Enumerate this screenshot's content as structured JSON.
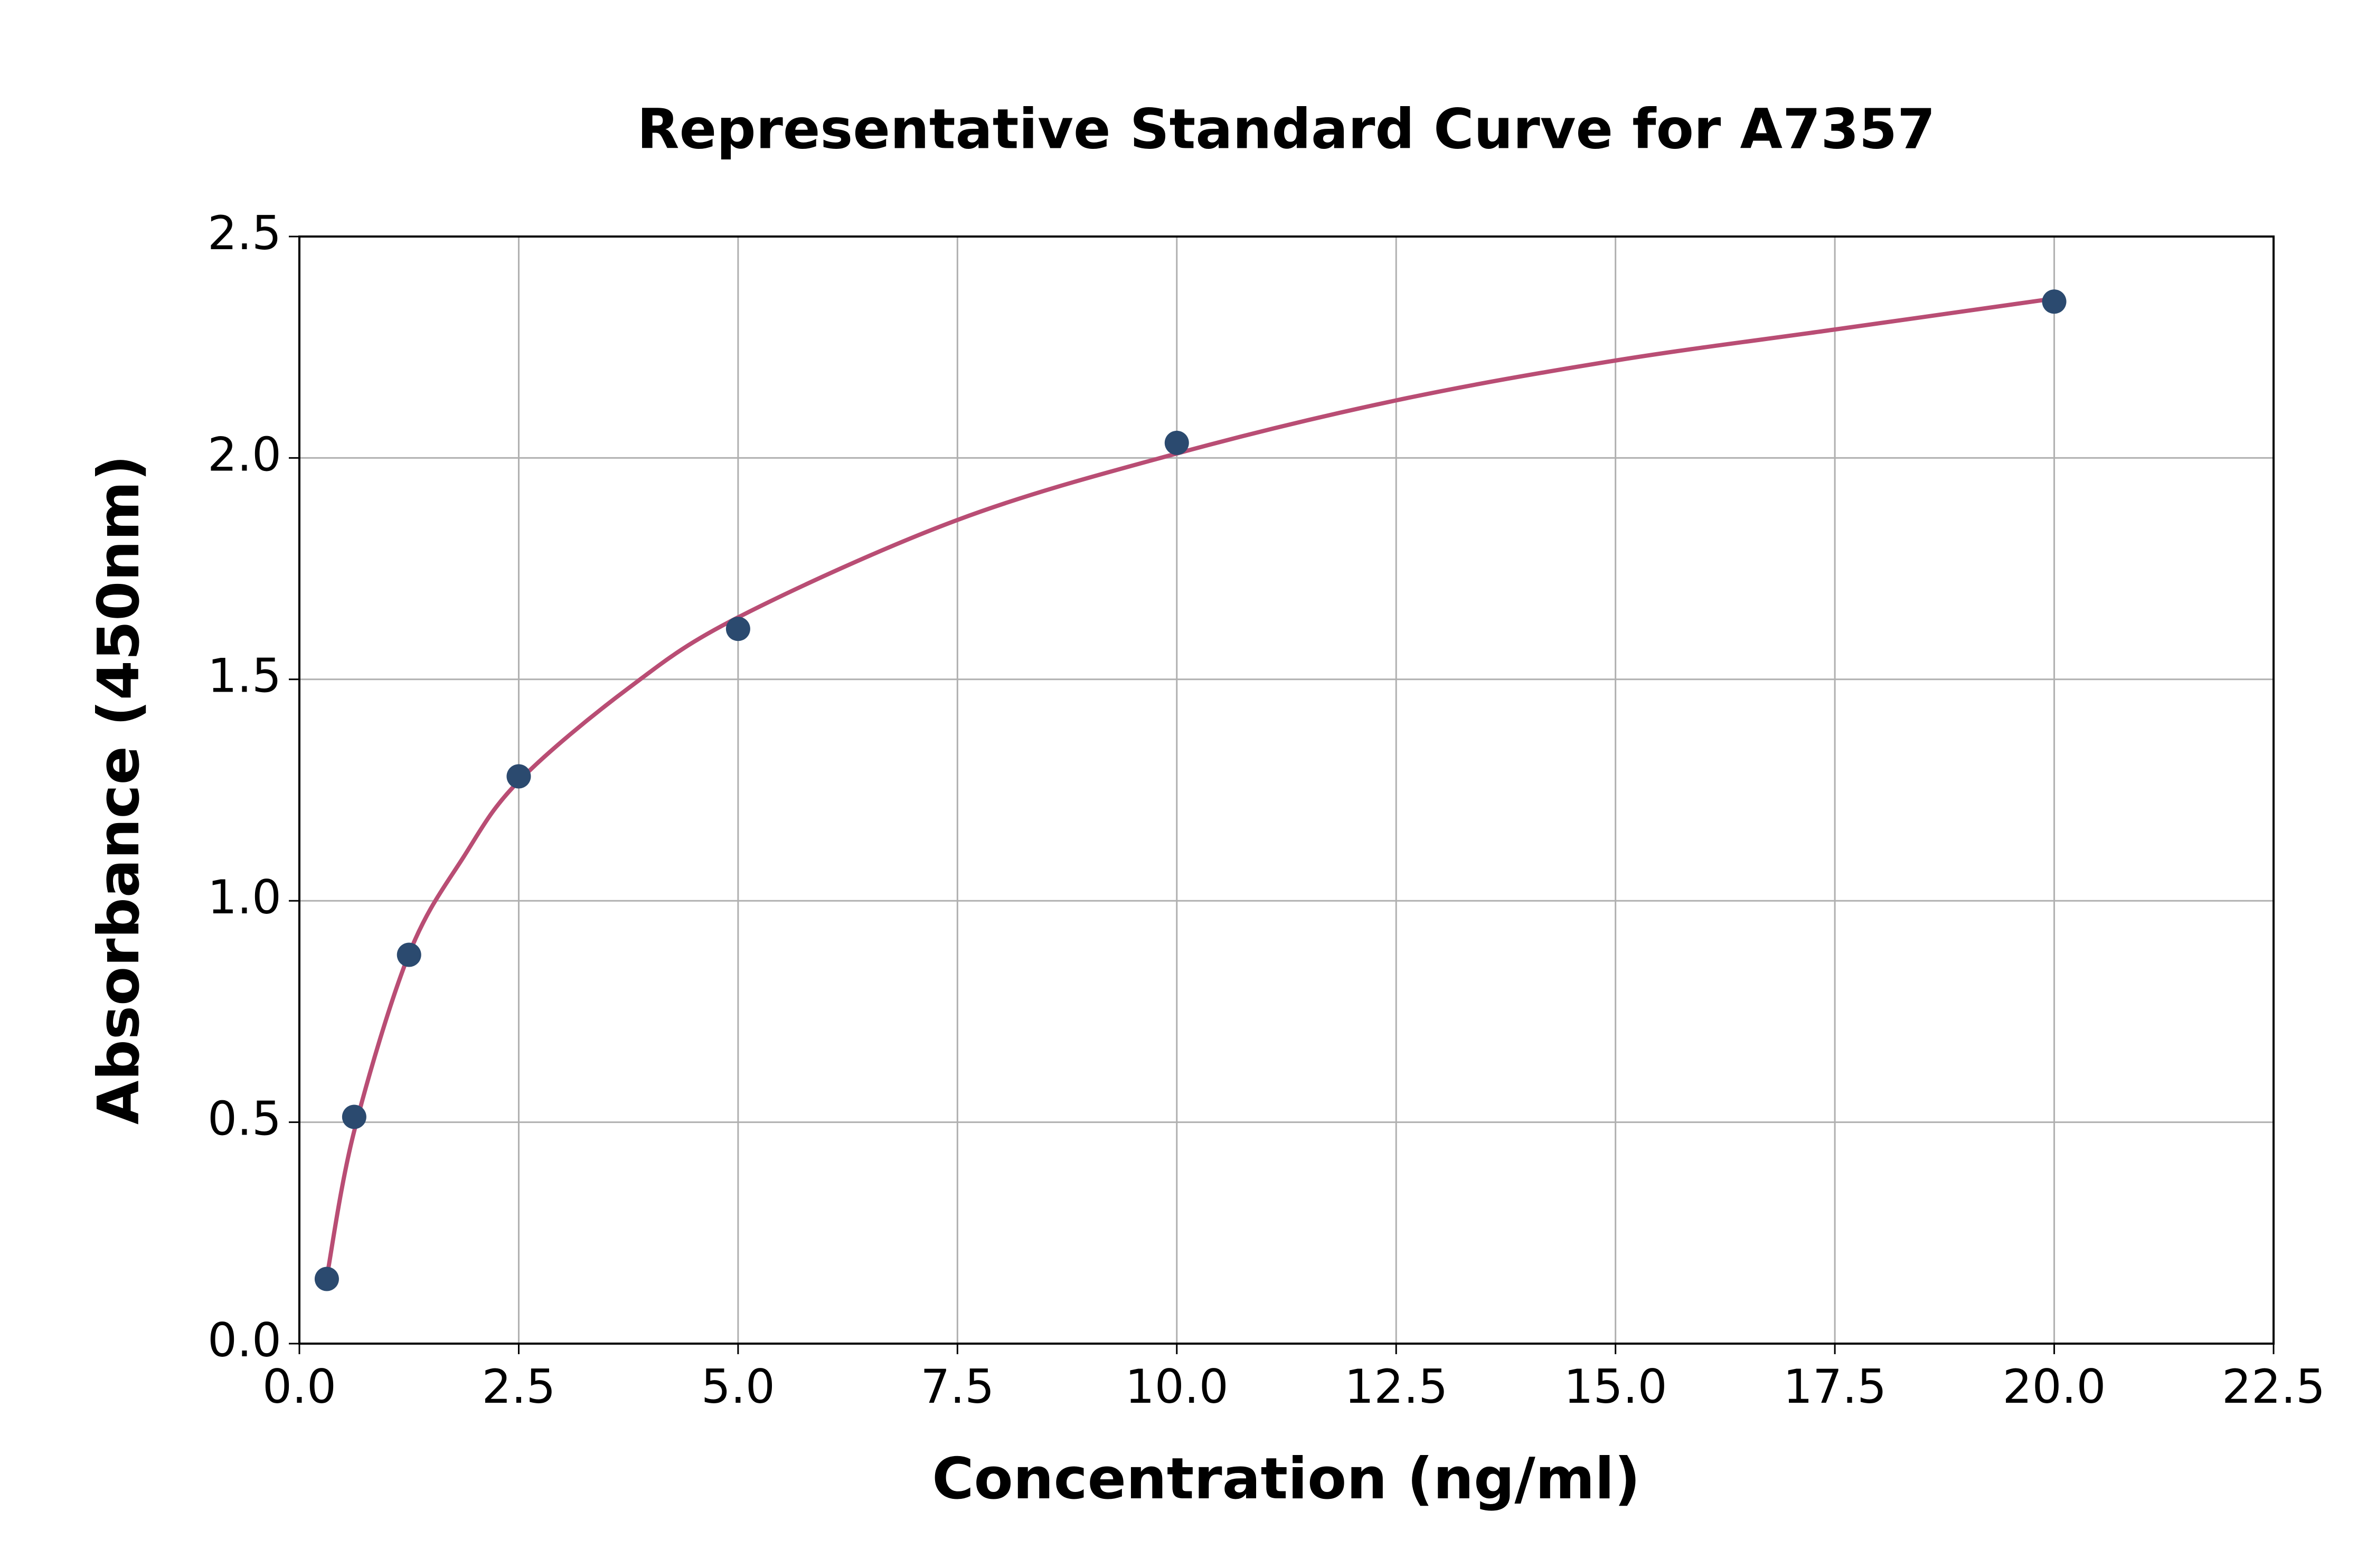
{
  "chart_data": {
    "type": "scatter",
    "title": "Representative Standard Curve for A7357",
    "x_label": "Concentration (ng/ml)",
    "y_label": "Absorbance (450nm)",
    "series": [
      {
        "type": "line",
        "color": "#b94d74",
        "x": [
          0.3125,
          0.625,
          1.25,
          1.875,
          2.5,
          3.75,
          5,
          7.5,
          10,
          12.5,
          15,
          17.5,
          20
        ],
        "values": [
          0.15,
          0.48,
          0.88,
          1.1,
          1.27,
          1.48,
          1.64,
          1.86,
          2.01,
          2.13,
          2.22,
          2.29,
          2.36
        ]
      },
      {
        "type": "scatter",
        "color": "#2b4a6f",
        "x": [
          0.3125,
          0.625,
          1.25,
          2.5,
          5,
          10,
          20
        ],
        "values": [
          0.146,
          0.512,
          0.878,
          1.281,
          1.614,
          2.034,
          2.353
        ]
      }
    ],
    "xlim": [
      0,
      22.5
    ],
    "xticks": [
      {
        "value": 0,
        "label": "0.0"
      },
      2.5,
      {
        "value": 5,
        "label": "5.0"
      },
      7.5,
      {
        "value": 10,
        "label": "10.0"
      },
      12.5,
      {
        "value": 15,
        "label": "15.0"
      },
      17.5,
      {
        "value": 20,
        "label": "20.0"
      },
      22.5
    ],
    "ylim": [
      0,
      2.5
    ],
    "yticks": [
      {
        "value": 0,
        "label": "0.0"
      },
      0.5,
      {
        "value": 1,
        "label": "1.0"
      },
      1.5,
      {
        "value": 2,
        "label": "2.0"
      },
      2.5
    ],
    "grid": true
  }
}
